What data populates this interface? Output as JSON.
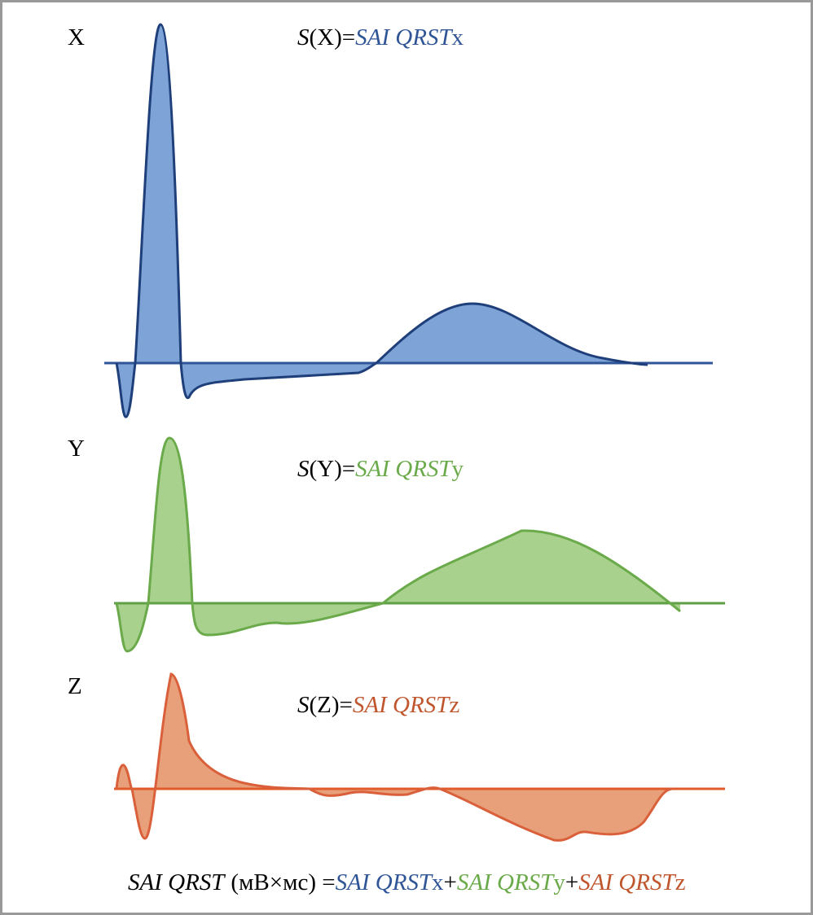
{
  "panels": [
    {
      "label": "X",
      "formula": [
        "S",
        "(X)=",
        "SAI QRST",
        "x"
      ]
    },
    {
      "label": "Y",
      "formula": [
        "S",
        "(Y)=",
        "SAI QRST",
        "y"
      ]
    },
    {
      "label": "Z",
      "formula": [
        "S",
        "(Z)=",
        "SAI QRST",
        "z"
      ]
    }
  ],
  "footer": [
    "SAI QRST",
    "(мВ×мс) =",
    "SAI QRST",
    "x",
    "+",
    "SAI QRST",
    "y",
    "+",
    "SAI QRST",
    "z"
  ]
}
